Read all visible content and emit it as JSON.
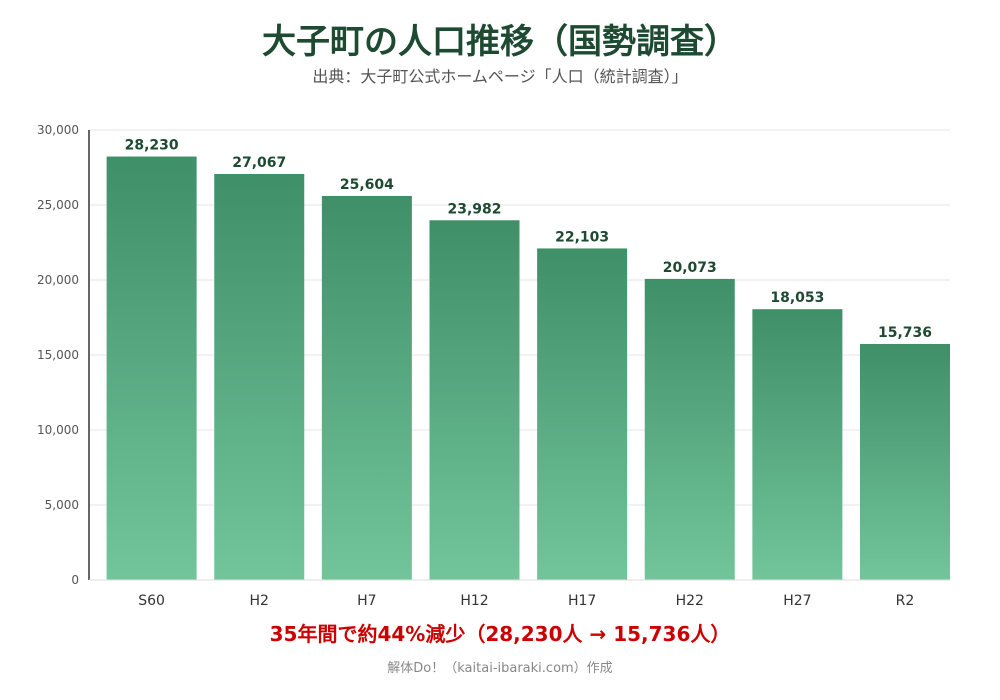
{
  "header": {
    "title": "大子町の人口推移（国勢調査）",
    "subtitle": "出典：大子町公式ホームページ「人口（統計調査）」"
  },
  "footer": {
    "note": "35年間で約44%減少（28,230人 → 15,736人）",
    "credit": "解体Do！（kaitai-ibaraki.com）作成"
  },
  "colors": {
    "bar_top": "#3f8f68",
    "bar_bottom": "#72c59b",
    "value_text": "#1d4a31",
    "note": "#cc0000"
  },
  "chart_data": {
    "type": "bar",
    "categories": [
      "S60",
      "H2",
      "H7",
      "H12",
      "H17",
      "H22",
      "H27",
      "R2"
    ],
    "values": [
      28230,
      27067,
      25604,
      23982,
      22103,
      20073,
      18053,
      15736
    ],
    "value_labels": [
      "28,230",
      "27,067",
      "25,604",
      "23,982",
      "22,103",
      "20,073",
      "18,053",
      "15,736"
    ],
    "ylim": [
      0,
      30000
    ],
    "yticks": [
      0,
      5000,
      10000,
      15000,
      20000,
      25000,
      30000
    ],
    "ytick_labels": [
      "0",
      "5,000",
      "10,000",
      "15,000",
      "20,000",
      "25,000",
      "30,000"
    ],
    "grid": true,
    "legend": "none"
  }
}
